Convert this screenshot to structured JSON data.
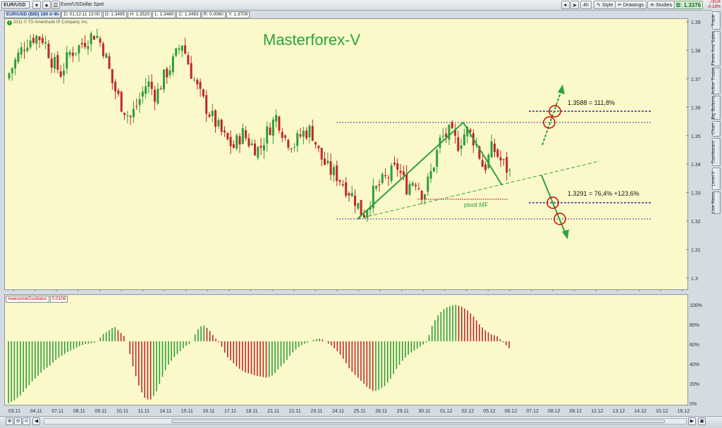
{
  "topbar": {
    "symbol": "EUR/USD",
    "description": "Euro/USDollar Spot",
    "interval": "4h",
    "style_label": "Style",
    "drawings_label": "Drawings",
    "studies_label": "Studies",
    "bid_label": "B: 1.3376",
    "change_abs": "-.0024",
    "change_pct": "-0.18%"
  },
  "infobar": {
    "symbol": "EUR/USD (BID) 180 d 4h",
    "date": "D: 01.12.11 13:00",
    "open": "O: 1.3495",
    "high": "H: 1.3520",
    "low": "L: 1.3460",
    "close": "C: 1.3483",
    "range": "R: 0.0060",
    "y": "Y: 1.3709"
  },
  "copyright": "2011 © TD Ameritrade IP Company, Inc.",
  "watermark": "Masterforex-V",
  "annotations": {
    "upper_target": "1.3588 = 111,8%",
    "lower_target": "1.3291 = 76,4% +123,6%",
    "pivot": "pivot MF"
  },
  "oscillator": {
    "name": "AwesomeOscillator",
    "value": "0.0106"
  },
  "sidebar": [
    "Trade",
    "Times And Sales",
    "Active Trader",
    "Big Buttons",
    "Chart",
    "Dashboard",
    "Level II",
    "Live News"
  ],
  "colors": {
    "bull": "#2e9e3a",
    "bear": "#c0262c",
    "chart_bg": "#fbf9c9",
    "pattern_line": "#2aa33c",
    "level_line": "#4a2aa0"
  },
  "chart_data": [
    {
      "type": "candlestick",
      "title": "",
      "ylim": [
        1.3,
        1.395
      ],
      "y_ticks": [
        "1.39",
        "1.38",
        "1.37",
        "1.36",
        "1.35",
        "1.34",
        "1.33",
        "1.32",
        "1.31",
        "1.3"
      ],
      "x_ticks": [
        "03.11",
        "04.11",
        "07.11",
        "08.11",
        "09.11",
        "10.11",
        "11.11",
        "14.11",
        "15.11",
        "16.11",
        "17.11",
        "18.11",
        "21.11",
        "22.11",
        "23.11",
        "24.11",
        "25.11",
        "28.11",
        "29.11",
        "30.11",
        "01.12",
        "02.12",
        "05.12",
        "06.12",
        "07.12",
        "08.12",
        "09.12",
        "12.12",
        "13.12",
        "14.12",
        "15.12",
        "16.12"
      ],
      "close_path": [
        1.372,
        1.378,
        1.383,
        1.385,
        1.384,
        1.376,
        1.372,
        1.379,
        1.381,
        1.384,
        1.386,
        1.38,
        1.368,
        1.361,
        1.356,
        1.362,
        1.369,
        1.364,
        1.371,
        1.376,
        1.383,
        1.373,
        1.365,
        1.359,
        1.354,
        1.349,
        1.346,
        1.351,
        1.347,
        1.345,
        1.352,
        1.357,
        1.349,
        1.347,
        1.351,
        1.352,
        1.343,
        1.338,
        1.336,
        1.332,
        1.328,
        1.322,
        1.329,
        1.333,
        1.336,
        1.339,
        1.332,
        1.335,
        1.329,
        1.338,
        1.349,
        1.351,
        1.347,
        1.352,
        1.348,
        1.338,
        1.346,
        1.341,
        1.337
      ],
      "last_close": 1.3376
    },
    {
      "type": "bar",
      "title": "AwesomeOscillator",
      "y_ticks": [
        "100%",
        "80%",
        "60%",
        "40%",
        "20%",
        "0%"
      ],
      "ylim": [
        0,
        100
      ],
      "zero_level": 63,
      "values": [
        0,
        3,
        8,
        15,
        22,
        28,
        34,
        38,
        44,
        48,
        52,
        55,
        58,
        60,
        61,
        62,
        70,
        74,
        78,
        72,
        66,
        40,
        20,
        6,
        3,
        10,
        25,
        38,
        46,
        52,
        58,
        61,
        74,
        80,
        75,
        67,
        60,
        48,
        42,
        36,
        32,
        30,
        28,
        27,
        26,
        29,
        36,
        42,
        50,
        56,
        60,
        62,
        65,
        66,
        62,
        58,
        52,
        44,
        34,
        28,
        22,
        16,
        12,
        14,
        18,
        26,
        36,
        44,
        50,
        54,
        58,
        62,
        80,
        90,
        96,
        99,
        100,
        98,
        94,
        88,
        80,
        74,
        70,
        68,
        62,
        56
      ],
      "colors_pattern": "rising=green, falling=red"
    }
  ]
}
